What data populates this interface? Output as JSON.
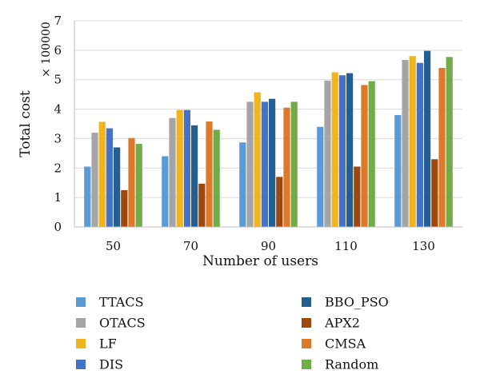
{
  "chart_data": {
    "type": "bar",
    "title": "",
    "xlabel": "Number of users",
    "ylabel": "Total cost",
    "multiplier": "× 100000",
    "ylim": [
      0,
      7
    ],
    "yticks": [
      "0",
      "1",
      "2",
      "3",
      "4",
      "5",
      "6",
      "7"
    ],
    "categories": [
      "50",
      "70",
      "90",
      "110",
      "130"
    ],
    "legend_position": "bottom",
    "series": [
      {
        "name": "TTACS",
        "color": "#5b9bd5",
        "values": [
          2.05,
          2.4,
          2.87,
          3.4,
          3.8
        ]
      },
      {
        "name": "OTACS",
        "color": "#a5a5a5",
        "values": [
          3.2,
          3.7,
          4.25,
          4.97,
          5.67
        ]
      },
      {
        "name": "LF",
        "color": "#f0b41c",
        "values": [
          3.57,
          3.97,
          4.57,
          5.25,
          5.8
        ]
      },
      {
        "name": "DIS",
        "color": "#4472c4",
        "values": [
          3.35,
          3.97,
          4.25,
          5.15,
          5.57
        ]
      },
      {
        "name": "BBO_PSO",
        "color": "#255e91",
        "values": [
          2.7,
          3.45,
          4.35,
          5.22,
          5.98
        ]
      },
      {
        "name": "APX2",
        "color": "#9e480e",
        "values": [
          1.25,
          1.47,
          1.7,
          2.05,
          2.3
        ]
      },
      {
        "name": "CMSA",
        "color": "#dd7a2a",
        "values": [
          3.02,
          3.58,
          4.05,
          4.82,
          5.4
        ]
      },
      {
        "name": "Random",
        "color": "#70ad47",
        "values": [
          2.82,
          3.3,
          4.25,
          4.95,
          5.77
        ]
      }
    ]
  }
}
